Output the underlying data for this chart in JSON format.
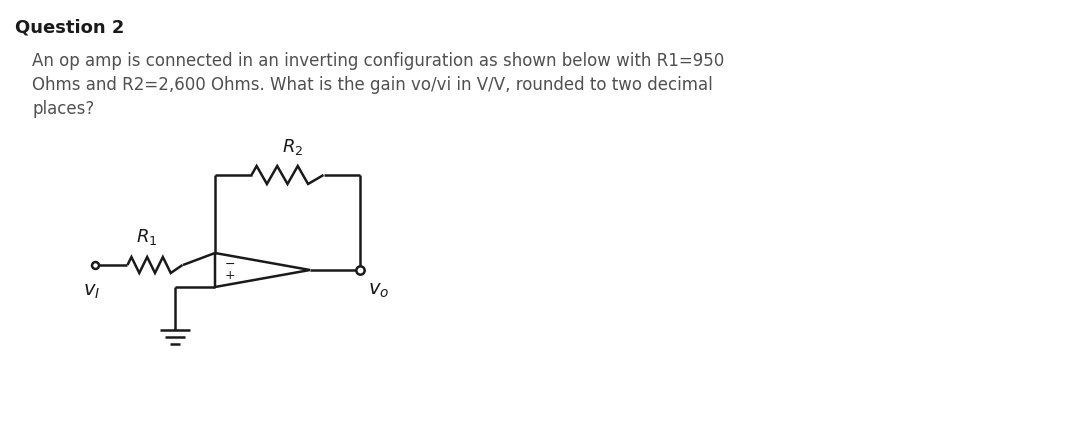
{
  "title": "Question 2",
  "title_color": "#1a1a1a",
  "body_text_line1": "An op amp is connected in an inverting configuration as shown below with R1=950",
  "body_text_line2": "Ohms and R2=2,600 Ohms. What is the gain vo/vi in V/V, rounded to two decimal",
  "body_text_line3": "places?",
  "body_text_color": "#505050",
  "bg_color": "#ffffff",
  "title_fontsize": 13,
  "body_fontsize": 12,
  "circuit": {
    "vi_label": "$v_I$",
    "vo_label": "$v_o$",
    "r1_label": "$R_1$",
    "r2_label": "$R_2$",
    "line_color": "#1a1a1a",
    "line_width": 1.8
  }
}
